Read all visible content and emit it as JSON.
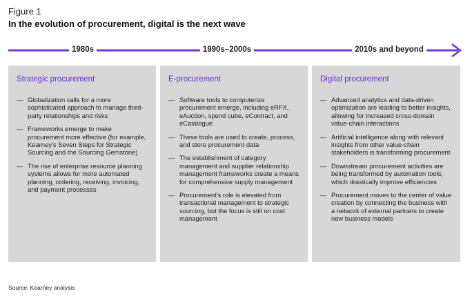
{
  "figure": {
    "label": "Figure 1",
    "title": "In the evolution of procurement, digital is the next wave"
  },
  "timeline": {
    "eras": [
      "1980s",
      "1990s–2000s",
      "2010s and beyond"
    ],
    "color": "#7b2fd9"
  },
  "panels": [
    {
      "heading": "Strategic procurement",
      "items": [
        "Globalization calls for a more sophisticated approach to manage third-party relationships and risks",
        "Frameworks emerge to make procurement more effective (for example, Kearney’s Seven Steps for Strategic Sourcing and the Sourcing Gemstone)",
        "The rise of enterprise resource planning systems allows for more automated planning, ordering, receiving, invoicing, and payment processes"
      ]
    },
    {
      "heading": "E-procurement",
      "items": [
        "Software tools to computerize procurement emerge, including eRFX, eAuction, spend cube, eContract, and eCatalogue",
        "These tools are used to create, process, and store procurement data",
        "The establishment of category management and supplier relationship management frameworks create a means for comprehensive supply management",
        "Procurement’s role is elevated from transactional management to strategic sourcing, but the focus is still on cost management"
      ]
    },
    {
      "heading": "Digital procurement",
      "items": [
        "Advanced analytics and data-driven optimization are leading to better insights, allowing for increased cross-domain value-chain interactions",
        "Artificial intelligence along with relevant insights from other value-chain stakeholders is transforming procurement",
        "Downstream procurement activities are being transformed by automation tools, which drastically improve efficiencies",
        "Procurement moves to the center of value creation by connecting the business with a network of external partners to create new business models"
      ]
    }
  ],
  "source": "Source: Kearney analysis",
  "colors": {
    "accent": "#7b2fd9",
    "heading": "#6b2fd6",
    "panel_bg": "#d7d7d7"
  }
}
